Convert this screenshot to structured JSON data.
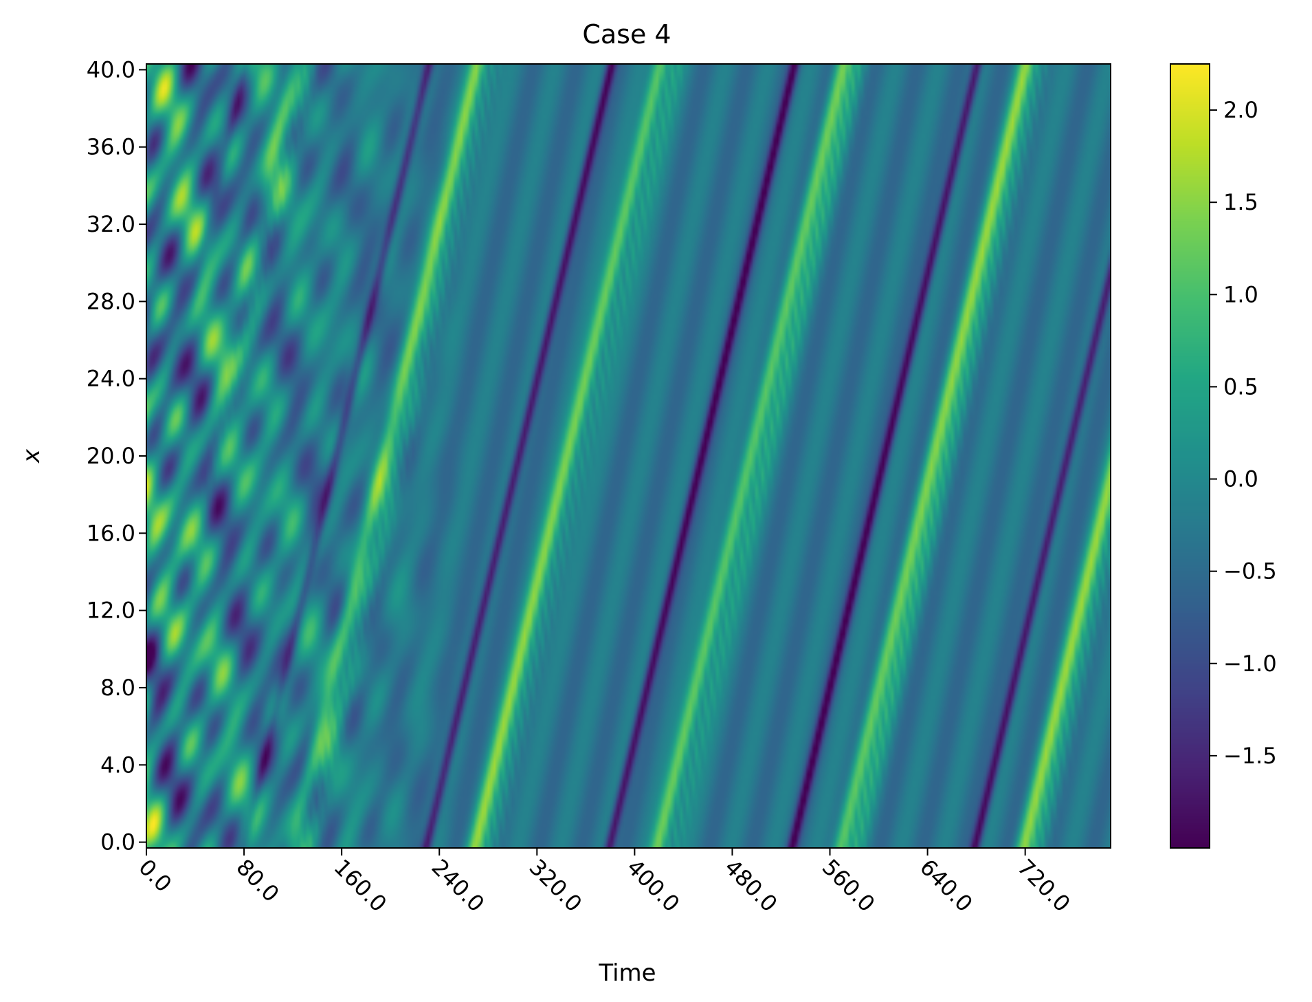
{
  "chart_data": {
    "type": "heatmap",
    "title": "Case 4",
    "xlabel": "Time",
    "ylabel": "x",
    "xlim": [
      0,
      790
    ],
    "ylim": [
      -0.3,
      40.3
    ],
    "x_ticks": [
      0,
      80,
      160,
      240,
      320,
      400,
      480,
      560,
      640,
      720
    ],
    "x_tick_labels": [
      "0.0",
      "80.0",
      "160.0",
      "240.0",
      "320.0",
      "400.0",
      "480.0",
      "560.0",
      "640.0",
      "720.0"
    ],
    "y_ticks": [
      0,
      4,
      8,
      12,
      16,
      20,
      24,
      28,
      32,
      36,
      40
    ],
    "y_tick_labels": [
      "0.0",
      "4.0",
      "8.0",
      "12.0",
      "16.0",
      "20.0",
      "24.0",
      "28.0",
      "32.0",
      "36.0",
      "40.0"
    ],
    "colormap": "viridis",
    "colorbar": {
      "vmin": -2.0,
      "vmax": 2.25,
      "ticks": [
        -1.5,
        -1.0,
        -0.5,
        0.0,
        0.5,
        1.0,
        1.5,
        2.0
      ],
      "tick_labels": [
        "−1.5",
        "−1.0",
        "−0.5",
        "0.0",
        "0.5",
        "1.0",
        "1.5",
        "2.0"
      ]
    },
    "field": {
      "description": "Traveling wave field u(t, x) on periodic domain x in [0, 40], t in [0, 790]",
      "wave_speed_x_per_time": 0.267,
      "period_in_time": 150,
      "positive_crest_x_at_t0": 8.0,
      "negative_trough_offset_x": 10.5,
      "crest_amplitude": 1.6,
      "trough_amplitude": -1.55,
      "background_level": -0.35,
      "transient_end_time": 270
    }
  }
}
